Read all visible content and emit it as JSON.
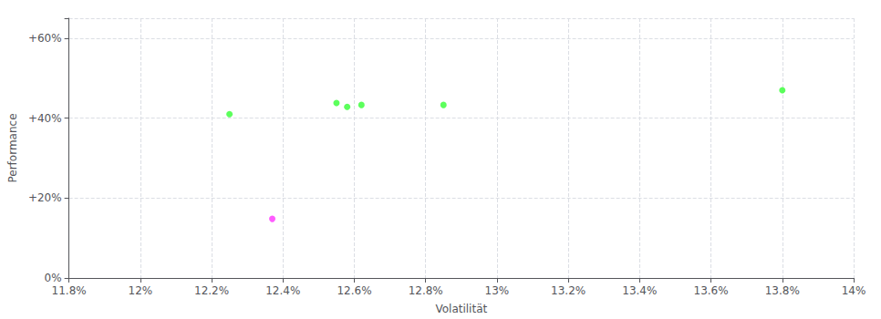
{
  "chart_data": {
    "type": "scatter",
    "xlabel": "Volatilität",
    "ylabel": "Performance",
    "xlim": [
      0.118,
      0.14
    ],
    "ylim": [
      0.0,
      0.65
    ],
    "xticks": [
      {
        "value": 0.118,
        "label": "11.8%"
      },
      {
        "value": 0.12,
        "label": "12%"
      },
      {
        "value": 0.122,
        "label": "12.2%"
      },
      {
        "value": 0.124,
        "label": "12.4%"
      },
      {
        "value": 0.126,
        "label": "12.6%"
      },
      {
        "value": 0.128,
        "label": "12.8%"
      },
      {
        "value": 0.13,
        "label": "13%"
      },
      {
        "value": 0.132,
        "label": "13.2%"
      },
      {
        "value": 0.134,
        "label": "13.4%"
      },
      {
        "value": 0.136,
        "label": "13.6%"
      },
      {
        "value": 0.138,
        "label": "13.8%"
      },
      {
        "value": 0.14,
        "label": "14%"
      }
    ],
    "yticks": [
      {
        "value": 0.0,
        "label": "0%"
      },
      {
        "value": 0.2,
        "label": "+20%"
      },
      {
        "value": 0.4,
        "label": "+40%"
      },
      {
        "value": 0.6,
        "label": "+60%"
      }
    ],
    "grid": true,
    "series": [
      {
        "color": "#33ff33",
        "x": [
          0.1225,
          0.1255,
          0.1258,
          0.1262,
          0.1285,
          0.138
        ],
        "values": [
          0.41,
          0.438,
          0.428,
          0.433,
          0.433,
          0.47
        ]
      },
      {
        "color": "#ff33ff",
        "x": [
          0.1237
        ],
        "values": [
          0.148
        ]
      }
    ]
  }
}
